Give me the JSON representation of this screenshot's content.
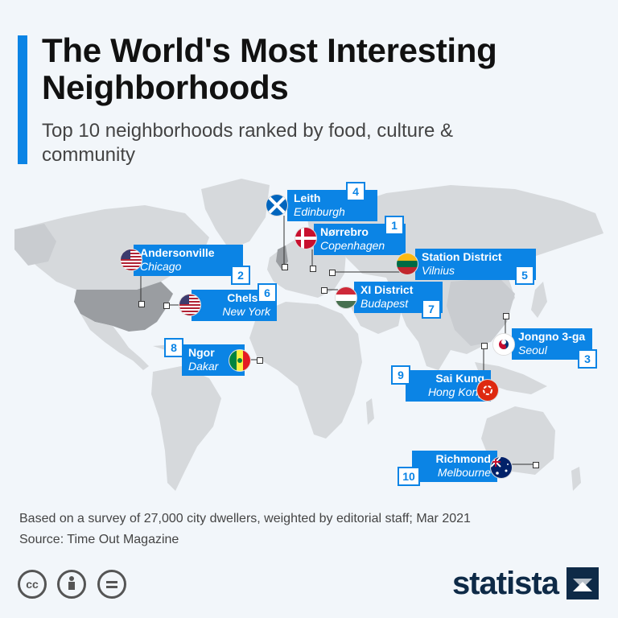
{
  "title": "The World's Most Interesting Neighborhoods",
  "subtitle": "Top 10 neighborhoods ranked by food, culture & community",
  "neighborhoods": [
    {
      "rank": "4",
      "name": "Leith",
      "city": "Edinburgh",
      "flag": "scotland-flag-icon"
    },
    {
      "rank": "1",
      "name": "Nørrebro",
      "city": "Copenhagen",
      "flag": "denmark-flag-icon"
    },
    {
      "rank": "2",
      "name": "Andersonville",
      "city": "Chicago",
      "flag": "usa-flag-icon"
    },
    {
      "rank": "5",
      "name": "Station District",
      "city": "Vilnius",
      "flag": "lithuania-flag-icon"
    },
    {
      "rank": "6",
      "name": "Chelsea",
      "city": "New York",
      "flag": "usa-flag-icon"
    },
    {
      "rank": "7",
      "name": "XI District",
      "city": "Budapest",
      "flag": "hungary-flag-icon"
    },
    {
      "rank": "8",
      "name": "Ngor",
      "city": "Dakar",
      "flag": "senegal-flag-icon"
    },
    {
      "rank": "3",
      "name": "Jongno 3-ga",
      "city": "Seoul",
      "flag": "south-korea-flag-icon"
    },
    {
      "rank": "9",
      "name": "Sai Kung",
      "city": "Hong Kong",
      "flag": "hong-kong-flag-icon"
    },
    {
      "rank": "10",
      "name": "Richmond",
      "city": "Melbourne",
      "flag": "australia-flag-icon"
    }
  ],
  "footer": {
    "note": "Based on a survey of 27,000 city dwellers, weighted by editorial staff; Mar 2021",
    "source": "Source: Time Out Magazine"
  },
  "brand": "statista",
  "colors": {
    "accent": "#0b84e5",
    "land": "#d6d9dc",
    "highlight": "#9a9da1",
    "brand": "#0e2a47"
  }
}
